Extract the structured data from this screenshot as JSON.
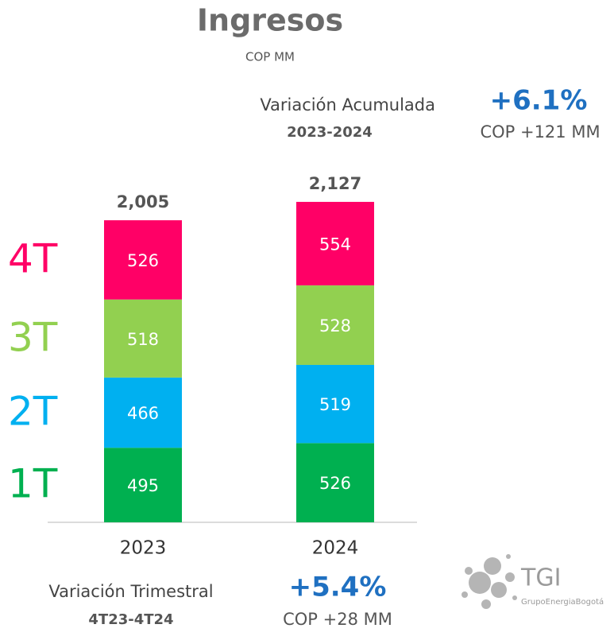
{
  "chart_data": {
    "type": "stacked_bar",
    "title": "Ingresos",
    "subtitle": "COP MM",
    "categories": [
      "2023",
      "2024"
    ],
    "series": [
      {
        "name": "1T",
        "color": "#00b050",
        "values": [
          495,
          526
        ]
      },
      {
        "name": "2T",
        "color": "#00b0f0",
        "values": [
          466,
          519
        ]
      },
      {
        "name": "3T",
        "color": "#92d050",
        "values": [
          518,
          528
        ]
      },
      {
        "name": "4T",
        "color": "#ff0066",
        "values": [
          526,
          554
        ]
      }
    ],
    "totals": [
      2005,
      2127
    ],
    "totals_labels": [
      "2,005",
      "2,127"
    ],
    "annotations": {
      "cumulative_label": "Variación Acumulada",
      "cumulative_period": "2023-2024",
      "cumulative_pct": "+6.1%",
      "cumulative_amount": "COP +121 MM",
      "quarterly_label": "Variación Trimestral",
      "quarterly_period": "4T23-4T24",
      "quarterly_pct": "+5.4%",
      "quarterly_amount": "COP +28 MM"
    },
    "logo": {
      "name": "TGI",
      "group": "GrupoEnergiaBogotá"
    }
  }
}
